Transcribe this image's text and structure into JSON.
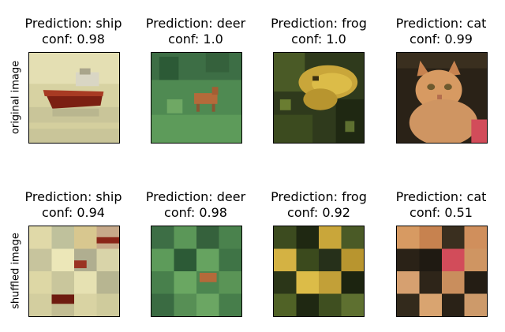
{
  "row_labels": [
    "original image",
    "shuffled image"
  ],
  "panels": [
    {
      "title": "Prediction: ship",
      "conf": "conf: 0.98"
    },
    {
      "title": "Prediction: deer",
      "conf": "conf: 1.0"
    },
    {
      "title": "Prediction: frog",
      "conf": "conf: 1.0"
    },
    {
      "title": "Prediction: cat",
      "conf": "conf: 0.99"
    },
    {
      "title": "Prediction: ship",
      "conf": "conf: 0.94"
    },
    {
      "title": "Prediction: deer",
      "conf": "conf: 0.98"
    },
    {
      "title": "Prediction: frog",
      "conf": "conf: 0.92"
    },
    {
      "title": "Prediction: cat",
      "conf": "conf: 0.51"
    }
  ]
}
